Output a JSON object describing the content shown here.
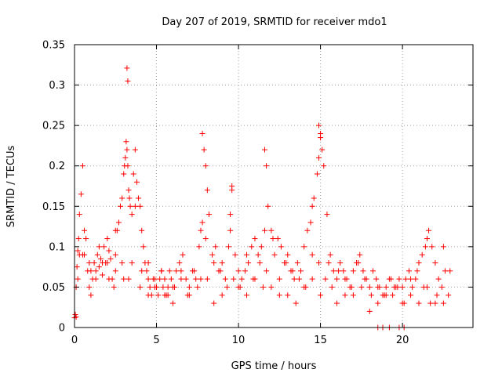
{
  "chart_data": {
    "type": "scatter",
    "title": "Day 207 of 2019, SRMTID for receiver mdo1",
    "xlabel": "GPS time / hours",
    "ylabel": "SRMTID / TECUs",
    "xlim": [
      0,
      24.3
    ],
    "ylim": [
      0,
      0.35
    ],
    "x_ticks": [
      0,
      5,
      10,
      15,
      20
    ],
    "x_tick_labels": [
      "0",
      "5",
      "10",
      "15",
      "20"
    ],
    "y_ticks": [
      0,
      0.05,
      0.1,
      0.15,
      0.2,
      0.25,
      0.3,
      0.35
    ],
    "y_tick_labels": [
      "0",
      "0.05",
      "0.1",
      "0.15",
      "0.2",
      "0.25",
      "0.3",
      "0.35"
    ],
    "grid": true,
    "marker": "plus",
    "color": "#ff0000",
    "series": [
      {
        "name": "SRMTID",
        "x": [
          0.0,
          0.05,
          0.1,
          0.15,
          0.2,
          0.25,
          0.3,
          0.4,
          0.5,
          0.6,
          0.7,
          0.8,
          0.9,
          1.0,
          1.1,
          1.2,
          1.3,
          1.4,
          1.5,
          1.6,
          1.7,
          1.8,
          1.9,
          2.0,
          2.1,
          2.2,
          2.3,
          2.4,
          2.5,
          2.6,
          2.7,
          2.8,
          2.9,
          3.0,
          3.05,
          3.1,
          3.15,
          3.2,
          3.25,
          3.3,
          3.35,
          3.4,
          3.5,
          3.6,
          3.7,
          3.8,
          3.9,
          4.0,
          4.1,
          4.2,
          4.3,
          4.4,
          4.5,
          4.6,
          4.7,
          4.8,
          4.9,
          5.0,
          5.1,
          5.2,
          5.3,
          5.4,
          5.5,
          5.6,
          5.7,
          5.8,
          5.9,
          6.0,
          6.2,
          6.4,
          6.6,
          6.8,
          7.0,
          7.2,
          7.4,
          7.6,
          7.7,
          7.8,
          7.9,
          8.0,
          8.1,
          8.2,
          8.4,
          8.6,
          8.8,
          9.0,
          9.2,
          9.4,
          9.5,
          9.6,
          9.8,
          10.0,
          10.2,
          10.4,
          10.6,
          10.8,
          11.0,
          11.2,
          11.4,
          11.6,
          11.7,
          11.8,
          12.0,
          12.2,
          12.4,
          12.6,
          12.8,
          13.0,
          13.2,
          13.4,
          13.6,
          13.8,
          14.0,
          14.2,
          14.4,
          14.5,
          14.6,
          14.8,
          14.9,
          15.0,
          15.1,
          15.2,
          15.4,
          15.6,
          15.8,
          16.0,
          16.2,
          16.4,
          16.6,
          16.8,
          17.0,
          17.2,
          17.4,
          17.6,
          17.8,
          18.0,
          18.2,
          18.4,
          18.6,
          18.8,
          19.0,
          19.2,
          19.4,
          19.6,
          19.8,
          20.0,
          20.2,
          20.4,
          20.6,
          20.8,
          21.0,
          21.2,
          21.4,
          21.5,
          21.6,
          21.8,
          22.0,
          22.2,
          22.4,
          22.6,
          22.8,
          0.1,
          0.3,
          0.6,
          0.9,
          1.3,
          1.7,
          2.1,
          2.5,
          2.9,
          3.3,
          3.7,
          4.1,
          4.5,
          4.9,
          5.3,
          5.7,
          6.1,
          6.5,
          6.9,
          7.3,
          7.7,
          8.1,
          8.5,
          8.9,
          9.3,
          9.7,
          10.1,
          10.5,
          10.9,
          11.3,
          11.7,
          12.1,
          12.5,
          12.9,
          13.3,
          13.7,
          14.1,
          14.5,
          14.9,
          15.3,
          15.7,
          16.1,
          16.5,
          16.9,
          17.3,
          17.7,
          18.1,
          18.5,
          18.9,
          19.3,
          19.7,
          20.1,
          20.5,
          20.9,
          21.3,
          21.7,
          22.1,
          22.5,
          22.9,
          0.2,
          0.5,
          1.0,
          1.5,
          2.0,
          2.5,
          3.0,
          3.5,
          4.0,
          4.5,
          5.0,
          5.5,
          6.0,
          6.5,
          7.0,
          7.5,
          8.0,
          8.5,
          9.0,
          9.5,
          10.0,
          10.5,
          11.0,
          11.5,
          12.0,
          12.5,
          13.0,
          13.5,
          14.0,
          14.5,
          15.0,
          15.5,
          16.0,
          16.5,
          17.0,
          17.5,
          18.0,
          18.5,
          19.0,
          19.5,
          20.0,
          20.5,
          21.0,
          21.5,
          22.0,
          22.5,
          3.2,
          3.25,
          7.8,
          14.9,
          15.0,
          11.6,
          9.6,
          18.5,
          18.8,
          19.2,
          19.8,
          20.1
        ],
        "y": [
          0.012,
          0.016,
          0.013,
          0.075,
          0.095,
          0.11,
          0.14,
          0.165,
          0.2,
          0.09,
          0.11,
          0.07,
          0.05,
          0.04,
          0.06,
          0.08,
          0.07,
          0.09,
          0.075,
          0.085,
          0.065,
          0.1,
          0.08,
          0.11,
          0.095,
          0.085,
          0.06,
          0.05,
          0.09,
          0.12,
          0.13,
          0.15,
          0.16,
          0.19,
          0.2,
          0.21,
          0.23,
          0.22,
          0.2,
          0.17,
          0.16,
          0.15,
          0.14,
          0.19,
          0.22,
          0.18,
          0.16,
          0.15,
          0.12,
          0.1,
          0.08,
          0.07,
          0.06,
          0.05,
          0.04,
          0.06,
          0.05,
          0.05,
          0.04,
          0.06,
          0.07,
          0.05,
          0.06,
          0.04,
          0.05,
          0.07,
          0.06,
          0.05,
          0.07,
          0.08,
          0.09,
          0.06,
          0.05,
          0.07,
          0.06,
          0.1,
          0.12,
          0.13,
          0.22,
          0.2,
          0.17,
          0.14,
          0.09,
          0.1,
          0.07,
          0.08,
          0.06,
          0.1,
          0.14,
          0.17,
          0.09,
          0.07,
          0.06,
          0.07,
          0.08,
          0.1,
          0.11,
          0.09,
          0.1,
          0.12,
          0.2,
          0.15,
          0.12,
          0.09,
          0.11,
          0.1,
          0.08,
          0.09,
          0.07,
          0.06,
          0.08,
          0.07,
          0.1,
          0.12,
          0.13,
          0.15,
          0.16,
          0.19,
          0.21,
          0.24,
          0.22,
          0.2,
          0.14,
          0.09,
          0.07,
          0.06,
          0.08,
          0.07,
          0.06,
          0.05,
          0.07,
          0.08,
          0.09,
          0.07,
          0.06,
          0.05,
          0.07,
          0.06,
          0.05,
          0.04,
          0.05,
          0.06,
          0.04,
          0.05,
          0.06,
          0.05,
          0.06,
          0.07,
          0.05,
          0.06,
          0.08,
          0.09,
          0.1,
          0.11,
          0.12,
          0.1,
          0.08,
          0.06,
          0.05,
          0.07,
          0.04,
          0.05,
          0.09,
          0.12,
          0.08,
          0.06,
          0.08,
          0.06,
          0.07,
          0.08,
          0.06,
          0.15,
          0.07,
          0.08,
          0.06,
          0.07,
          0.04,
          0.05,
          0.06,
          0.04,
          0.07,
          0.06,
          0.06,
          0.08,
          0.07,
          0.05,
          0.06,
          0.05,
          0.09,
          0.06,
          0.08,
          0.07,
          0.11,
          0.06,
          0.08,
          0.07,
          0.06,
          0.05,
          0.09,
          0.08,
          0.06,
          0.05,
          0.07,
          0.06,
          0.05,
          0.08,
          0.06,
          0.04,
          0.05,
          0.04,
          0.06,
          0.05,
          0.03,
          0.06,
          0.07,
          0.05,
          0.03,
          0.04,
          0.1,
          0.07,
          0.06,
          0.09,
          0.07,
          0.1,
          0.08,
          0.12,
          0.06,
          0.08,
          0.05,
          0.04,
          0.05,
          0.04,
          0.03,
          0.07,
          0.04,
          0.05,
          0.11,
          0.03,
          0.04,
          0.12,
          0.05,
          0.04,
          0.06,
          0.05,
          0.05,
          0.04,
          0.04,
          0.03,
          0.05,
          0.06,
          0.04,
          0.08,
          0.03,
          0.04,
          0.04,
          0.05,
          0.02,
          0.03,
          0.04,
          0.05,
          0.03,
          0.04,
          0.03,
          0.05,
          0.03,
          0.03,
          0.321,
          0.305,
          0.24,
          0.25,
          0.235,
          0.22,
          0.175,
          0.0,
          0.0,
          0.0,
          0.0,
          0.0
        ]
      }
    ]
  }
}
